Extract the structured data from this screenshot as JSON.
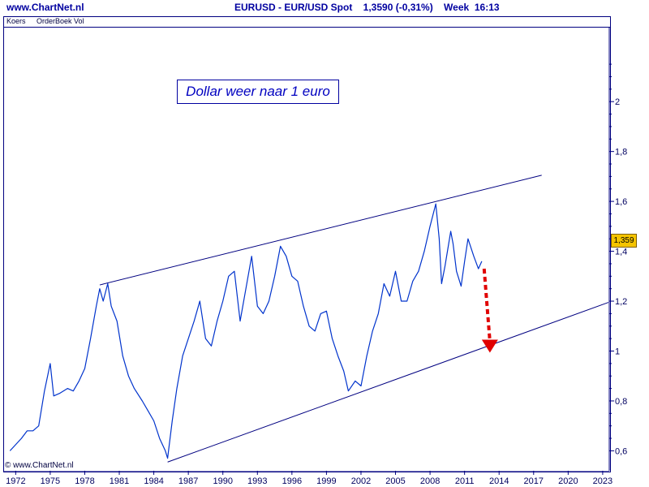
{
  "header": {
    "site": "www.ChartNet.nl",
    "info": "EURUSD - EUR/USD Spot    1,3590 (-0,31%)    Week  16:13"
  },
  "subheader": {
    "label1": "Koers",
    "label2": "OrderBoek Vol"
  },
  "callout": "Dollar weer naar 1 euro",
  "price_tag": "1,359",
  "copyright": "© www.ChartNet.nl",
  "colors": {
    "series": "#0033cc",
    "trendline": "#000080",
    "arrow": "#e00000",
    "tag": "#f5c400"
  },
  "chart_data": {
    "type": "line",
    "title": "EURUSD - EUR/USD Spot",
    "x_ticks": [
      "1972",
      "1975",
      "1978",
      "1981",
      "1984",
      "1987",
      "1990",
      "1993",
      "1996",
      "1999",
      "2002",
      "2005",
      "2008",
      "2011",
      "2014",
      "2017",
      "2020",
      "2023"
    ],
    "y_ticks": [
      {
        "value": 0.6,
        "label": "0,6"
      },
      {
        "value": 0.8,
        "label": "0,8"
      },
      {
        "value": 1.0,
        "label": "1"
      },
      {
        "value": 1.2,
        "label": "1,2"
      },
      {
        "value": 1.4,
        "label": "1,4"
      },
      {
        "value": 1.6,
        "label": "1,6"
      },
      {
        "value": 1.8,
        "label": "1,8"
      },
      {
        "value": 2.0,
        "label": "2"
      }
    ],
    "xlim": [
      1971.2,
      2023.5
    ],
    "ylim": [
      0.52,
      2.3
    ],
    "series": [
      {
        "values": [
          [
            1971.5,
            0.6
          ],
          [
            1972.5,
            0.65
          ],
          [
            1973.0,
            0.68
          ],
          [
            1973.5,
            0.68
          ],
          [
            1974.0,
            0.7
          ],
          [
            1974.5,
            0.84
          ],
          [
            1975.0,
            0.95
          ],
          [
            1975.3,
            0.82
          ],
          [
            1975.8,
            0.83
          ],
          [
            1976.5,
            0.85
          ],
          [
            1977.0,
            0.84
          ],
          [
            1977.5,
            0.88
          ],
          [
            1978.0,
            0.93
          ],
          [
            1978.5,
            1.05
          ],
          [
            1979.0,
            1.18
          ],
          [
            1979.3,
            1.25
          ],
          [
            1979.6,
            1.2
          ],
          [
            1980.0,
            1.27
          ],
          [
            1980.3,
            1.18
          ],
          [
            1980.8,
            1.12
          ],
          [
            1981.3,
            0.98
          ],
          [
            1981.8,
            0.9
          ],
          [
            1982.3,
            0.85
          ],
          [
            1983.0,
            0.8
          ],
          [
            1983.5,
            0.76
          ],
          [
            1984.0,
            0.72
          ],
          [
            1984.5,
            0.65
          ],
          [
            1985.0,
            0.6
          ],
          [
            1985.2,
            0.57
          ],
          [
            1985.6,
            0.72
          ],
          [
            1986.0,
            0.85
          ],
          [
            1986.5,
            0.98
          ],
          [
            1987.0,
            1.05
          ],
          [
            1987.5,
            1.12
          ],
          [
            1988.0,
            1.2
          ],
          [
            1988.5,
            1.05
          ],
          [
            1989.0,
            1.02
          ],
          [
            1989.5,
            1.12
          ],
          [
            1990.0,
            1.2
          ],
          [
            1990.5,
            1.3
          ],
          [
            1991.0,
            1.32
          ],
          [
            1991.5,
            1.12
          ],
          [
            1992.0,
            1.25
          ],
          [
            1992.5,
            1.38
          ],
          [
            1993.0,
            1.18
          ],
          [
            1993.5,
            1.15
          ],
          [
            1994.0,
            1.2
          ],
          [
            1994.5,
            1.3
          ],
          [
            1995.0,
            1.42
          ],
          [
            1995.5,
            1.38
          ],
          [
            1996.0,
            1.3
          ],
          [
            1996.5,
            1.28
          ],
          [
            1997.0,
            1.18
          ],
          [
            1997.5,
            1.1
          ],
          [
            1998.0,
            1.08
          ],
          [
            1998.5,
            1.15
          ],
          [
            1999.0,
            1.16
          ],
          [
            1999.5,
            1.05
          ],
          [
            2000.0,
            0.98
          ],
          [
            2000.5,
            0.92
          ],
          [
            2000.9,
            0.84
          ],
          [
            2001.5,
            0.88
          ],
          [
            2002.0,
            0.86
          ],
          [
            2002.5,
            0.98
          ],
          [
            2003.0,
            1.08
          ],
          [
            2003.5,
            1.15
          ],
          [
            2004.0,
            1.27
          ],
          [
            2004.5,
            1.22
          ],
          [
            2005.0,
            1.32
          ],
          [
            2005.5,
            1.2
          ],
          [
            2006.0,
            1.2
          ],
          [
            2006.5,
            1.28
          ],
          [
            2007.0,
            1.32
          ],
          [
            2007.5,
            1.4
          ],
          [
            2008.0,
            1.5
          ],
          [
            2008.5,
            1.59
          ],
          [
            2008.8,
            1.45
          ],
          [
            2009.0,
            1.27
          ],
          [
            2009.3,
            1.34
          ],
          [
            2009.8,
            1.48
          ],
          [
            2010.0,
            1.43
          ],
          [
            2010.3,
            1.32
          ],
          [
            2010.7,
            1.26
          ],
          [
            2011.0,
            1.36
          ],
          [
            2011.3,
            1.45
          ],
          [
            2011.8,
            1.38
          ],
          [
            2012.2,
            1.33
          ],
          [
            2012.5,
            1.36
          ]
        ]
      }
    ],
    "trendlines": [
      {
        "from": [
          1979.3,
          1.265
        ],
        "to": [
          2017.7,
          1.705
        ]
      },
      {
        "from": [
          1985.2,
          0.555
        ],
        "to": [
          2023.5,
          1.195
        ]
      }
    ],
    "arrow": {
      "from": [
        2012.7,
        1.33
      ],
      "to": [
        2013.2,
        1.0
      ]
    }
  }
}
